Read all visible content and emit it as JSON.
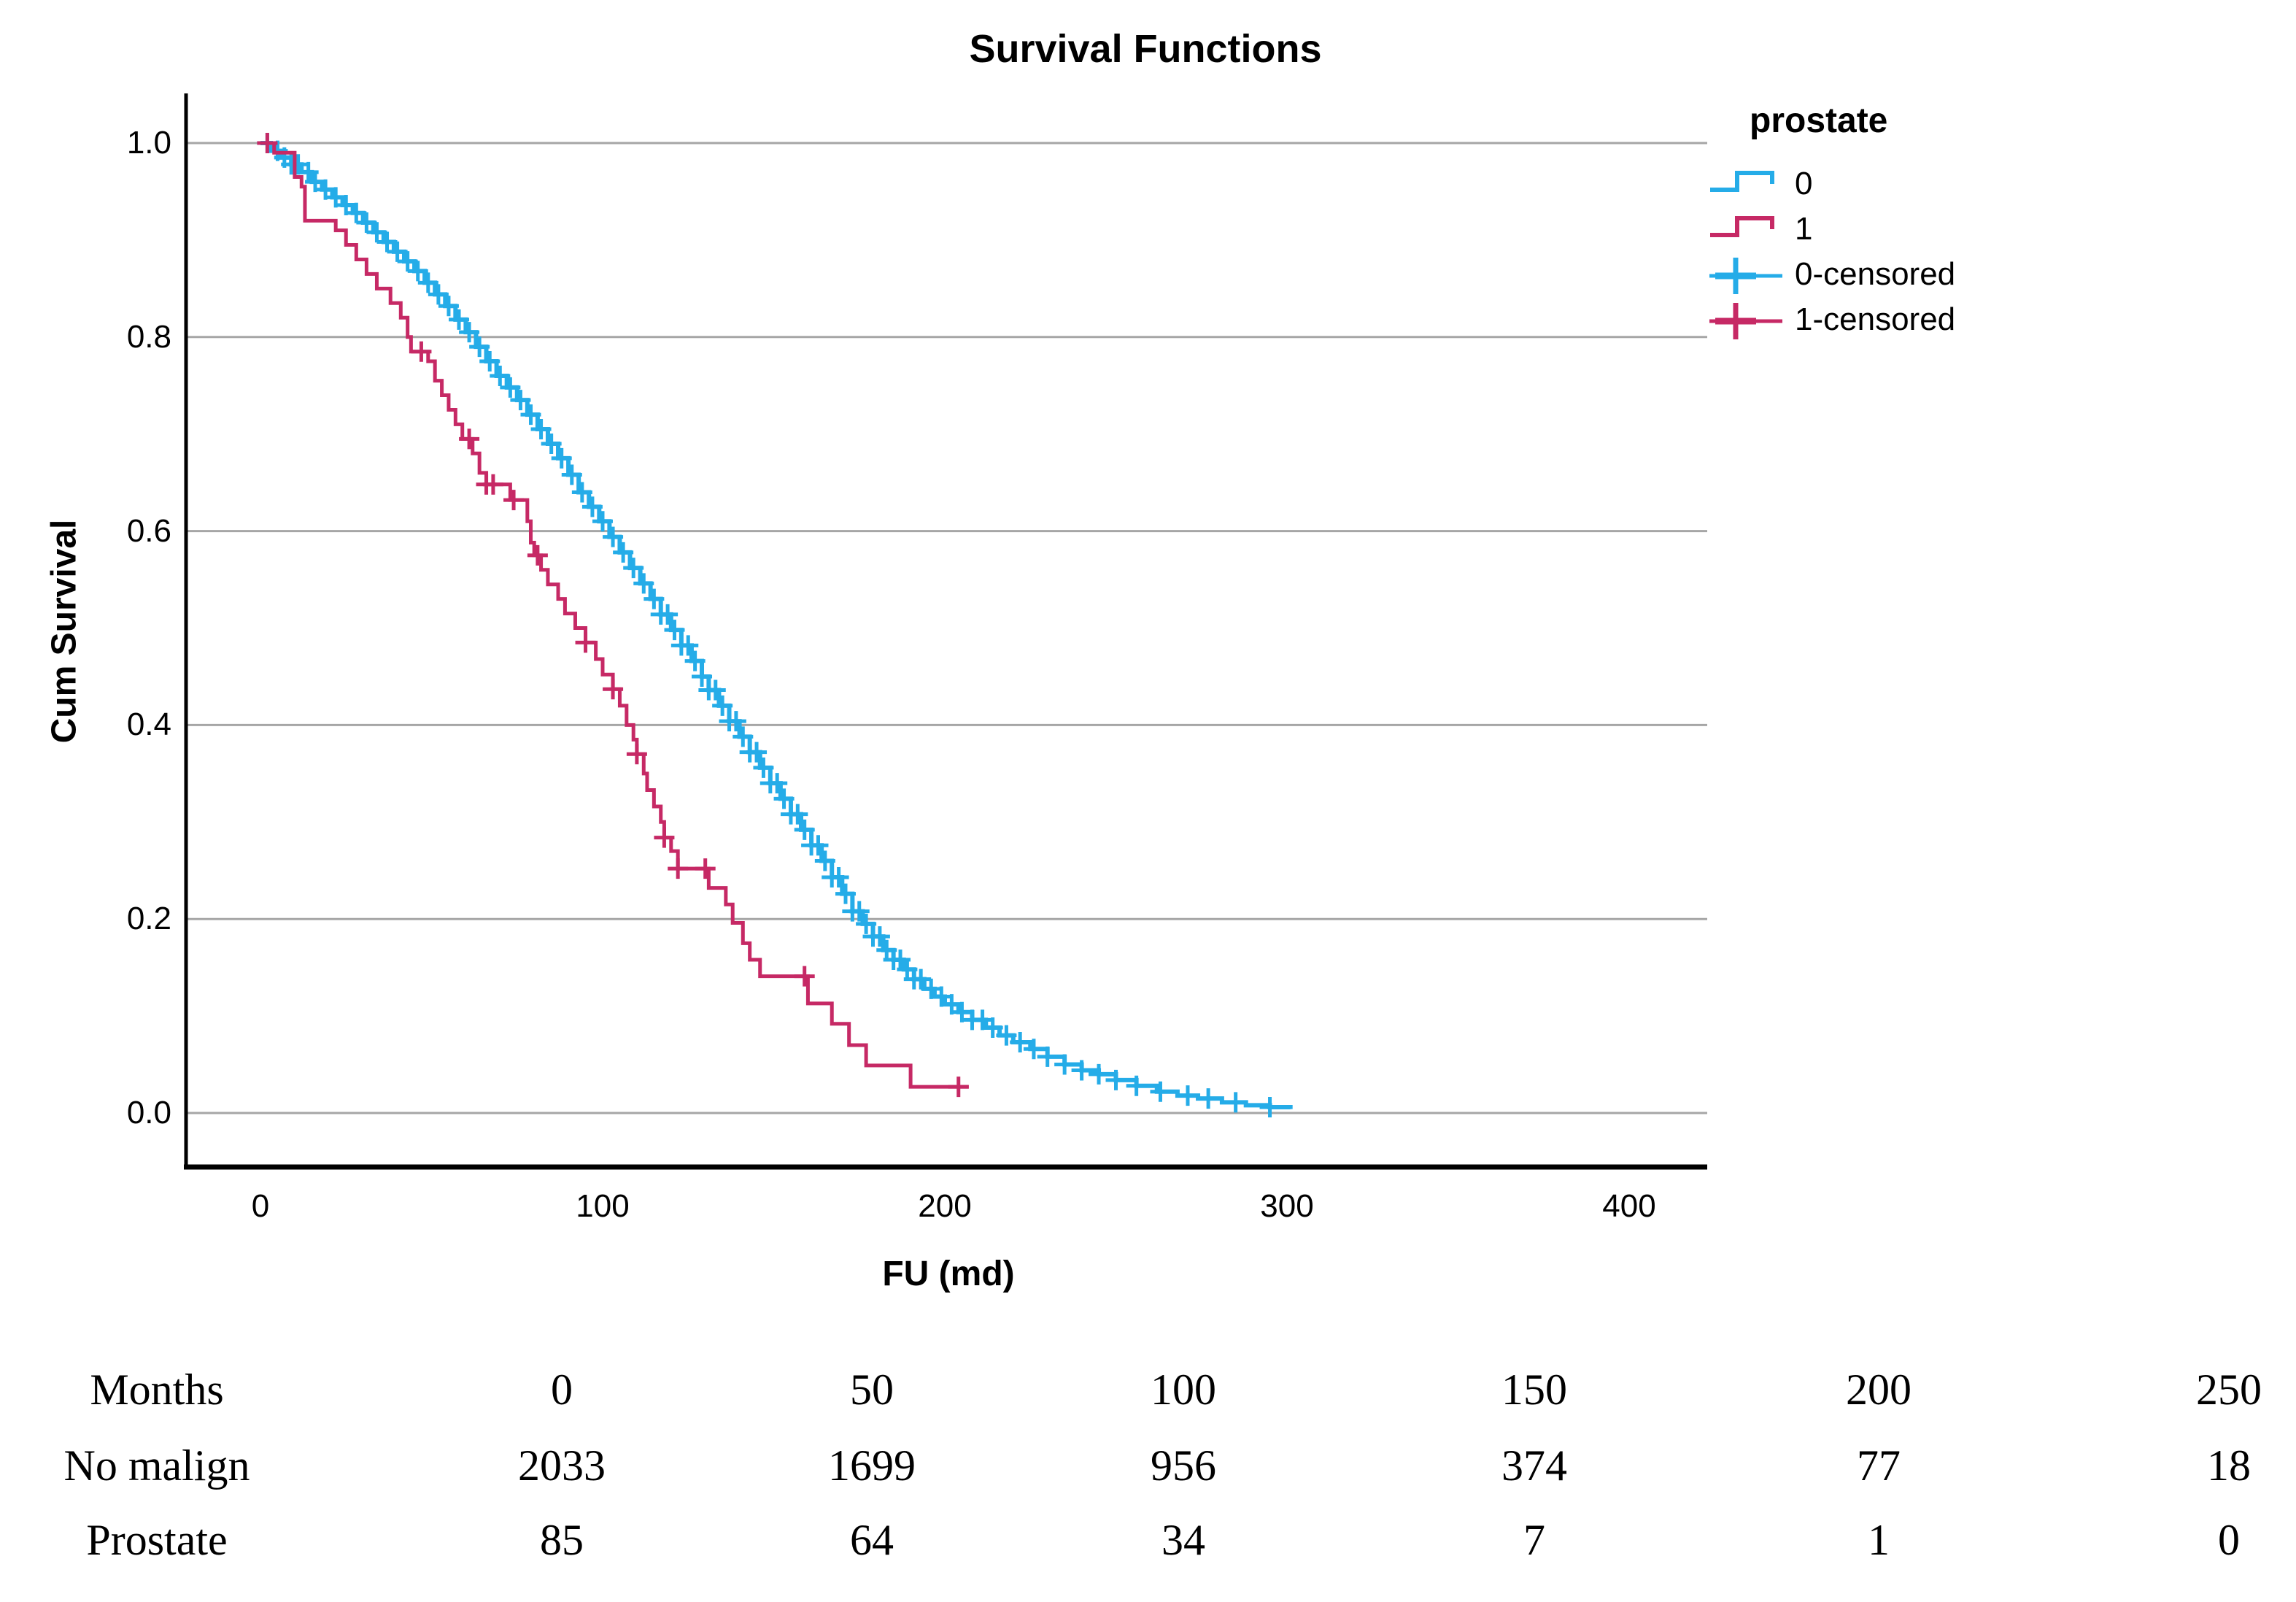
{
  "chart_data": {
    "type": "line",
    "subtype": "kaplan-meier-step",
    "title": "Survival Functions",
    "xlabel": "FU (md)",
    "ylabel": "Cum Survival",
    "xticks": [
      0,
      100,
      200,
      300,
      400
    ],
    "yticks": [
      0.0,
      0.2,
      0.4,
      0.6,
      0.8,
      1.0
    ],
    "xlim": [
      -22,
      423
    ],
    "ylim": [
      0.0,
      1.0
    ],
    "grid": "horizontal",
    "colors": {
      "grid": "#A6A6A6",
      "axis": "#000000"
    },
    "legend": {
      "title": "prostate",
      "position": "right",
      "entries": [
        {
          "label": "0",
          "type": "line",
          "series": 0
        },
        {
          "label": "1",
          "type": "line",
          "series": 1
        },
        {
          "label": "0-censored",
          "type": "censored",
          "series": 0
        },
        {
          "label": "1-censored",
          "type": "censored",
          "series": 1
        }
      ]
    },
    "series": [
      {
        "name": "0",
        "color": "#25ACE8",
        "width": 6,
        "points": [
          [
            0,
            1.0
          ],
          [
            3,
            0.992
          ],
          [
            6,
            0.985
          ],
          [
            9,
            0.978
          ],
          [
            12,
            0.97
          ],
          [
            15,
            0.96
          ],
          [
            18,
            0.952
          ],
          [
            21,
            0.944
          ],
          [
            24,
            0.936
          ],
          [
            27,
            0.928
          ],
          [
            30,
            0.918
          ],
          [
            33,
            0.908
          ],
          [
            36,
            0.898
          ],
          [
            39,
            0.888
          ],
          [
            42,
            0.878
          ],
          [
            45,
            0.868
          ],
          [
            48,
            0.856
          ],
          [
            51,
            0.844
          ],
          [
            54,
            0.832
          ],
          [
            57,
            0.818
          ],
          [
            60,
            0.805
          ],
          [
            63,
            0.79
          ],
          [
            66,
            0.775
          ],
          [
            69,
            0.76
          ],
          [
            72,
            0.748
          ],
          [
            75,
            0.735
          ],
          [
            78,
            0.72
          ],
          [
            81,
            0.705
          ],
          [
            84,
            0.69
          ],
          [
            87,
            0.675
          ],
          [
            90,
            0.658
          ],
          [
            93,
            0.64
          ],
          [
            96,
            0.625
          ],
          [
            99,
            0.61
          ],
          [
            102,
            0.594
          ],
          [
            105,
            0.578
          ],
          [
            108,
            0.562
          ],
          [
            111,
            0.546
          ],
          [
            114,
            0.53
          ],
          [
            117,
            0.514
          ],
          [
            120,
            0.498
          ],
          [
            123,
            0.482
          ],
          [
            126,
            0.466
          ],
          [
            129,
            0.45
          ],
          [
            131,
            0.436
          ],
          [
            134,
            0.42
          ],
          [
            137,
            0.404
          ],
          [
            140,
            0.388
          ],
          [
            143,
            0.372
          ],
          [
            146,
            0.356
          ],
          [
            149,
            0.34
          ],
          [
            152,
            0.324
          ],
          [
            155,
            0.308
          ],
          [
            158,
            0.292
          ],
          [
            161,
            0.276
          ],
          [
            164,
            0.26
          ],
          [
            167,
            0.243
          ],
          [
            170,
            0.226
          ],
          [
            173,
            0.208
          ],
          [
            176,
            0.195
          ],
          [
            179,
            0.182
          ],
          [
            182,
            0.168
          ],
          [
            185,
            0.158
          ],
          [
            188,
            0.148
          ],
          [
            191,
            0.138
          ],
          [
            194,
            0.128
          ],
          [
            197,
            0.12
          ],
          [
            200,
            0.112
          ],
          [
            204,
            0.104
          ],
          [
            208,
            0.096
          ],
          [
            212,
            0.088
          ],
          [
            216,
            0.08
          ],
          [
            220,
            0.073
          ],
          [
            225,
            0.066
          ],
          [
            230,
            0.058
          ],
          [
            235,
            0.05
          ],
          [
            240,
            0.044
          ],
          [
            245,
            0.04
          ],
          [
            250,
            0.034
          ],
          [
            256,
            0.028
          ],
          [
            262,
            0.022
          ],
          [
            268,
            0.018
          ],
          [
            274,
            0.015
          ],
          [
            281,
            0.011
          ],
          [
            288,
            0.008
          ],
          [
            295,
            0.006
          ],
          [
            301,
            0.004
          ]
        ],
        "censored_t": [
          2,
          5,
          7,
          9,
          11,
          14,
          16,
          19,
          22,
          25,
          28,
          31,
          34,
          37,
          40,
          43,
          46,
          49,
          52,
          55,
          58,
          61,
          64,
          67,
          70,
          73,
          76,
          79,
          82,
          85,
          88,
          91,
          94,
          97,
          100,
          103,
          106,
          109,
          112,
          115,
          117,
          119,
          121,
          123,
          125,
          127,
          129,
          131,
          133,
          135,
          137,
          139,
          141,
          143,
          145,
          147,
          149,
          151,
          153,
          155,
          157,
          159,
          161,
          163,
          165,
          167,
          169,
          171,
          173,
          175,
          177,
          179,
          181,
          183,
          185,
          187,
          189,
          191,
          193,
          196,
          199,
          202,
          205,
          208,
          211,
          214,
          218,
          222,
          226,
          230,
          235,
          240,
          245,
          250,
          256,
          263,
          271,
          277,
          285,
          295
        ]
      },
      {
        "name": "1",
        "color": "#C62965",
        "width": 5,
        "points": [
          [
            0,
            1.0
          ],
          [
            4,
            0.99
          ],
          [
            10,
            0.965
          ],
          [
            12,
            0.955
          ],
          [
            13,
            0.92
          ],
          [
            22,
            0.91
          ],
          [
            25,
            0.895
          ],
          [
            28,
            0.88
          ],
          [
            31,
            0.865
          ],
          [
            34,
            0.85
          ],
          [
            38,
            0.835
          ],
          [
            41,
            0.82
          ],
          [
            43,
            0.8
          ],
          [
            44,
            0.785
          ],
          [
            49,
            0.775
          ],
          [
            51,
            0.755
          ],
          [
            53,
            0.74
          ],
          [
            55,
            0.725
          ],
          [
            57,
            0.71
          ],
          [
            59,
            0.695
          ],
          [
            62,
            0.68
          ],
          [
            64,
            0.66
          ],
          [
            66,
            0.648
          ],
          [
            73,
            0.632
          ],
          [
            78,
            0.61
          ],
          [
            79,
            0.588
          ],
          [
            80,
            0.575
          ],
          [
            82,
            0.56
          ],
          [
            84,
            0.545
          ],
          [
            87,
            0.53
          ],
          [
            89,
            0.515
          ],
          [
            92,
            0.5
          ],
          [
            95,
            0.485
          ],
          [
            98,
            0.468
          ],
          [
            100,
            0.452
          ],
          [
            103,
            0.437
          ],
          [
            105,
            0.42
          ],
          [
            107,
            0.4
          ],
          [
            109,
            0.385
          ],
          [
            110,
            0.37
          ],
          [
            112,
            0.35
          ],
          [
            113,
            0.333
          ],
          [
            115,
            0.316
          ],
          [
            117,
            0.3
          ],
          [
            118,
            0.284
          ],
          [
            120,
            0.27
          ],
          [
            122,
            0.252
          ],
          [
            131,
            0.232
          ],
          [
            136,
            0.215
          ],
          [
            138,
            0.196
          ],
          [
            141,
            0.175
          ],
          [
            143,
            0.158
          ],
          [
            146,
            0.141
          ],
          [
            160,
            0.113
          ],
          [
            167,
            0.092
          ],
          [
            172,
            0.07
          ],
          [
            177,
            0.049
          ],
          [
            190,
            0.027
          ],
          [
            207,
            0.027
          ]
        ],
        "censored_t": [
          2,
          47,
          61,
          66,
          68,
          74,
          81,
          95,
          103,
          110,
          118,
          122,
          130,
          159,
          204
        ]
      }
    ]
  },
  "risk_table": {
    "rows": [
      {
        "label": "Months",
        "values": [
          "0",
          "50",
          "100",
          "150",
          "200",
          "250"
        ]
      },
      {
        "label": "No malign",
        "values": [
          "2033",
          "1699",
          "956",
          "374",
          "77",
          "18"
        ]
      },
      {
        "label": "Prostate",
        "values": [
          "85",
          "64",
          "34",
          "7",
          "1",
          "0"
        ]
      }
    ]
  }
}
